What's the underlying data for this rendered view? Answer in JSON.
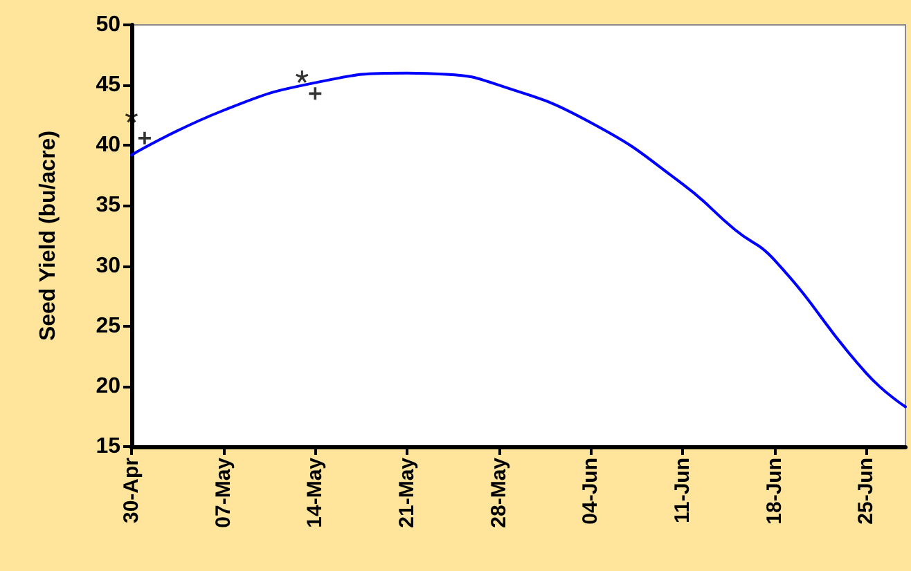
{
  "chart_data": {
    "type": "line",
    "ylabel": "Seed Yield (bu/acre)",
    "series": [
      {
        "color": "#0000ff",
        "marker": "none",
        "line_style": "solid",
        "x": [
          "--04-30",
          "--05-07",
          "--05-14",
          "--05-21",
          "--05-24",
          "--05-28",
          "--06-04",
          "--06-11",
          "--06-15",
          "--06-18",
          "--06-25",
          "--06-28"
        ],
        "values": [
          39.2,
          42.9,
          45.2,
          46.0,
          45.9,
          45.0,
          41.9,
          36.8,
          33.0,
          30.5,
          21.1,
          18.3
        ]
      },
      {
        "type": "scatter",
        "color": "#000000",
        "marker": "star",
        "x": [
          "--04-30",
          "--05-13"
        ],
        "values": [
          42.4,
          45.7
        ]
      },
      {
        "type": "scatter",
        "color": "#000000",
        "marker": "cross",
        "x": [
          "--05-01",
          "--05-14"
        ],
        "values": [
          40.6,
          44.3
        ]
      }
    ],
    "xlim": [
      "--04-30",
      "--06-28"
    ],
    "xticks": [
      {
        "value": "--04-30",
        "label": "30-Apr"
      },
      {
        "value": "--05-07",
        "label": "07-May"
      },
      {
        "value": "--05-14",
        "label": "14-May"
      },
      {
        "value": "--05-21",
        "label": "21-May"
      },
      {
        "value": "--05-28",
        "label": "28-May"
      },
      {
        "value": "--06-04",
        "label": "04-Jun"
      },
      {
        "value": "--06-11",
        "label": "11-Jun"
      },
      {
        "value": "--06-18",
        "label": "18-Jun"
      },
      {
        "value": "--06-25",
        "label": "25-Jun"
      }
    ],
    "ylim": [
      15,
      50
    ],
    "yticks": [
      15,
      20,
      25,
      30,
      35,
      40,
      45,
      50
    ],
    "grid": false
  }
}
